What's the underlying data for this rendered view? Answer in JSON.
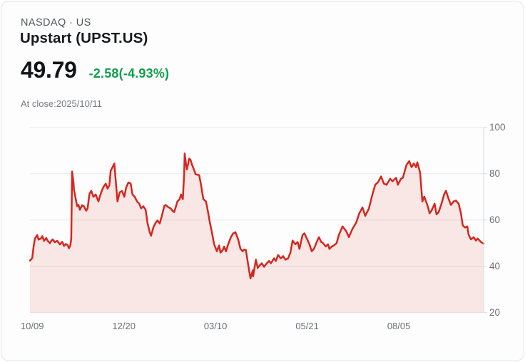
{
  "header": {
    "exchange_line": "NASDAQ · US",
    "title": "Upstart (UPST.US)",
    "price": "49.79",
    "change": "-2.58(-4.93%)",
    "change_color": "#0f9f4c",
    "as_of": "At close:2025/10/11"
  },
  "chart_data": {
    "type": "area",
    "title": "Upstart (UPST.US)",
    "xlabel": "",
    "ylabel": "",
    "ylim": [
      20,
      100
    ],
    "grid": "horizontal",
    "axis_side": "right",
    "line_color": "#d7261d",
    "fill_color": "rgba(215,38,29,0.10)",
    "grid_color": "#e8e9ea",
    "axis_color": "#d8dadd",
    "y_ticks": [
      100,
      80,
      60,
      40,
      20
    ],
    "y_tick_labels": [
      "100",
      "80",
      "60",
      "40",
      "20"
    ],
    "x_tick_labels": [
      "10/09",
      "12/20",
      "03/10",
      "05/21",
      "08/05"
    ],
    "x_tick_positions": [
      0.005,
      0.207,
      0.409,
      0.611,
      0.813
    ],
    "points": [
      [
        0.0,
        42.5
      ],
      [
        0.005,
        43.5
      ],
      [
        0.008,
        48.5
      ],
      [
        0.011,
        52.0
      ],
      [
        0.016,
        53.5
      ],
      [
        0.019,
        51.5
      ],
      [
        0.024,
        52.0
      ],
      [
        0.027,
        53.0
      ],
      [
        0.031,
        51.0
      ],
      [
        0.036,
        52.2
      ],
      [
        0.039,
        51.0
      ],
      [
        0.044,
        50.0
      ],
      [
        0.047,
        51.0
      ],
      [
        0.05,
        51.6
      ],
      [
        0.055,
        50.4
      ],
      [
        0.06,
        51.0
      ],
      [
        0.063,
        50.2
      ],
      [
        0.066,
        49.4
      ],
      [
        0.071,
        50.6
      ],
      [
        0.075,
        48.8
      ],
      [
        0.079,
        49.6
      ],
      [
        0.083,
        49.2
      ],
      [
        0.086,
        47.8
      ],
      [
        0.089,
        49.0
      ],
      [
        0.091,
        52.0
      ],
      [
        0.093,
        80.9
      ],
      [
        0.096,
        76.0
      ],
      [
        0.097,
        73.0
      ],
      [
        0.099,
        71.0
      ],
      [
        0.104,
        66.0
      ],
      [
        0.107,
        66.5
      ],
      [
        0.11,
        64.4
      ],
      [
        0.115,
        66.4
      ],
      [
        0.119,
        65.9
      ],
      [
        0.124,
        64.0
      ],
      [
        0.127,
        65.0
      ],
      [
        0.131,
        71.1
      ],
      [
        0.135,
        72.6
      ],
      [
        0.14,
        70.0
      ],
      [
        0.145,
        71.0
      ],
      [
        0.148,
        69.5
      ],
      [
        0.151,
        68.0
      ],
      [
        0.154,
        70.0
      ],
      [
        0.157,
        72.0
      ],
      [
        0.162,
        74.2
      ],
      [
        0.167,
        75.7
      ],
      [
        0.171,
        73.5
      ],
      [
        0.175,
        75.0
      ],
      [
        0.178,
        81.3
      ],
      [
        0.182,
        82.8
      ],
      [
        0.186,
        84.4
      ],
      [
        0.189,
        77.2
      ],
      [
        0.193,
        68.0
      ],
      [
        0.198,
        72.0
      ],
      [
        0.203,
        72.5
      ],
      [
        0.208,
        70.0
      ],
      [
        0.212,
        74.0
      ],
      [
        0.217,
        76.2
      ],
      [
        0.222,
        75.7
      ],
      [
        0.226,
        71.0
      ],
      [
        0.231,
        70.0
      ],
      [
        0.236,
        68.0
      ],
      [
        0.241,
        67.0
      ],
      [
        0.245,
        65.0
      ],
      [
        0.25,
        65.9
      ],
      [
        0.255,
        64.4
      ],
      [
        0.259,
        58.8
      ],
      [
        0.264,
        54.7
      ],
      [
        0.267,
        53.2
      ],
      [
        0.272,
        56.8
      ],
      [
        0.277,
        58.8
      ],
      [
        0.281,
        59.8
      ],
      [
        0.286,
        58.5
      ],
      [
        0.291,
        62.0
      ],
      [
        0.296,
        66.0
      ],
      [
        0.299,
        66.5
      ],
      [
        0.305,
        65.5
      ],
      [
        0.31,
        65.0
      ],
      [
        0.314,
        64.0
      ],
      [
        0.318,
        63.4
      ],
      [
        0.322,
        66.0
      ],
      [
        0.325,
        68.0
      ],
      [
        0.33,
        69.0
      ],
      [
        0.333,
        71.0
      ],
      [
        0.337,
        69.0
      ],
      [
        0.34,
        80.0
      ],
      [
        0.341,
        88.7
      ],
      [
        0.344,
        84.0
      ],
      [
        0.346,
        81.8
      ],
      [
        0.351,
        86.5
      ],
      [
        0.354,
        86.0
      ],
      [
        0.357,
        83.9
      ],
      [
        0.362,
        81.5
      ],
      [
        0.365,
        79.8
      ],
      [
        0.369,
        79.5
      ],
      [
        0.373,
        79.4
      ],
      [
        0.377,
        75.2
      ],
      [
        0.382,
        69.0
      ],
      [
        0.388,
        68.0
      ],
      [
        0.392,
        64.0
      ],
      [
        0.396,
        59.4
      ],
      [
        0.401,
        54.7
      ],
      [
        0.406,
        49.5
      ],
      [
        0.412,
        46.5
      ],
      [
        0.417,
        49.0
      ],
      [
        0.42,
        45.9
      ],
      [
        0.425,
        47.0
      ],
      [
        0.428,
        48.5
      ],
      [
        0.432,
        46.5
      ],
      [
        0.437,
        49.5
      ],
      [
        0.443,
        52.6
      ],
      [
        0.448,
        54.2
      ],
      [
        0.453,
        54.7
      ],
      [
        0.459,
        51.6
      ],
      [
        0.464,
        47.5
      ],
      [
        0.469,
        46.5
      ],
      [
        0.472,
        47.2
      ],
      [
        0.476,
        47.0
      ],
      [
        0.483,
        38.2
      ],
      [
        0.486,
        34.8
      ],
      [
        0.491,
        38.2
      ],
      [
        0.492,
        35.7
      ],
      [
        0.498,
        42.9
      ],
      [
        0.502,
        39.3
      ],
      [
        0.506,
        40.3
      ],
      [
        0.511,
        41.3
      ],
      [
        0.516,
        39.8
      ],
      [
        0.522,
        41.3
      ],
      [
        0.527,
        42.3
      ],
      [
        0.531,
        41.3
      ],
      [
        0.538,
        43.4
      ],
      [
        0.542,
        42.3
      ],
      [
        0.547,
        44.9
      ],
      [
        0.553,
        43.4
      ],
      [
        0.558,
        44.4
      ],
      [
        0.563,
        42.9
      ],
      [
        0.569,
        43.4
      ],
      [
        0.574,
        45.9
      ],
      [
        0.579,
        51.1
      ],
      [
        0.585,
        49.5
      ],
      [
        0.59,
        50.5
      ],
      [
        0.594,
        47.5
      ],
      [
        0.601,
        53.6
      ],
      [
        0.605,
        54.2
      ],
      [
        0.61,
        52.1
      ],
      [
        0.616,
        49.5
      ],
      [
        0.621,
        46.5
      ],
      [
        0.626,
        47.5
      ],
      [
        0.632,
        50.5
      ],
      [
        0.637,
        52.6
      ],
      [
        0.642,
        50.5
      ],
      [
        0.645,
        50.2
      ],
      [
        0.652,
        48.6
      ],
      [
        0.657,
        49.5
      ],
      [
        0.66,
        47.5
      ],
      [
        0.665,
        48.5
      ],
      [
        0.67,
        49.0
      ],
      [
        0.676,
        50.0
      ],
      [
        0.681,
        53.6
      ],
      [
        0.689,
        57.2
      ],
      [
        0.697,
        55.2
      ],
      [
        0.703,
        52.6
      ],
      [
        0.711,
        56.2
      ],
      [
        0.719,
        58.8
      ],
      [
        0.726,
        62.9
      ],
      [
        0.733,
        65.4
      ],
      [
        0.739,
        61.8
      ],
      [
        0.747,
        64.9
      ],
      [
        0.755,
        71.1
      ],
      [
        0.761,
        75.2
      ],
      [
        0.767,
        76.2
      ],
      [
        0.774,
        78.8
      ],
      [
        0.78,
        75.7
      ],
      [
        0.786,
        75.2
      ],
      [
        0.794,
        77.8
      ],
      [
        0.799,
        76.7
      ],
      [
        0.807,
        78.2
      ],
      [
        0.811,
        75.2
      ],
      [
        0.818,
        77.8
      ],
      [
        0.822,
        78.2
      ],
      [
        0.83,
        83.8
      ],
      [
        0.836,
        85.4
      ],
      [
        0.841,
        82.8
      ],
      [
        0.846,
        84.4
      ],
      [
        0.851,
        82.8
      ],
      [
        0.854,
        84.9
      ],
      [
        0.86,
        80.3
      ],
      [
        0.865,
        68.0
      ],
      [
        0.869,
        70.1
      ],
      [
        0.876,
        66.5
      ],
      [
        0.881,
        62.9
      ],
      [
        0.885,
        64.0
      ],
      [
        0.892,
        67.0
      ],
      [
        0.896,
        62.4
      ],
      [
        0.901,
        63.4
      ],
      [
        0.907,
        67.0
      ],
      [
        0.913,
        71.1
      ],
      [
        0.917,
        72.6
      ],
      [
        0.923,
        69.0
      ],
      [
        0.928,
        66.5
      ],
      [
        0.934,
        68.0
      ],
      [
        0.939,
        68.4
      ],
      [
        0.945,
        67.0
      ],
      [
        0.95,
        62.9
      ],
      [
        0.954,
        57.7
      ],
      [
        0.959,
        56.7
      ],
      [
        0.964,
        57.2
      ],
      [
        0.967,
        53.6
      ],
      [
        0.972,
        51.6
      ],
      [
        0.978,
        52.6
      ],
      [
        0.983,
        51.1
      ],
      [
        0.987,
        52.0
      ],
      [
        0.994,
        50.5
      ],
      [
        1.0,
        49.8
      ]
    ]
  }
}
